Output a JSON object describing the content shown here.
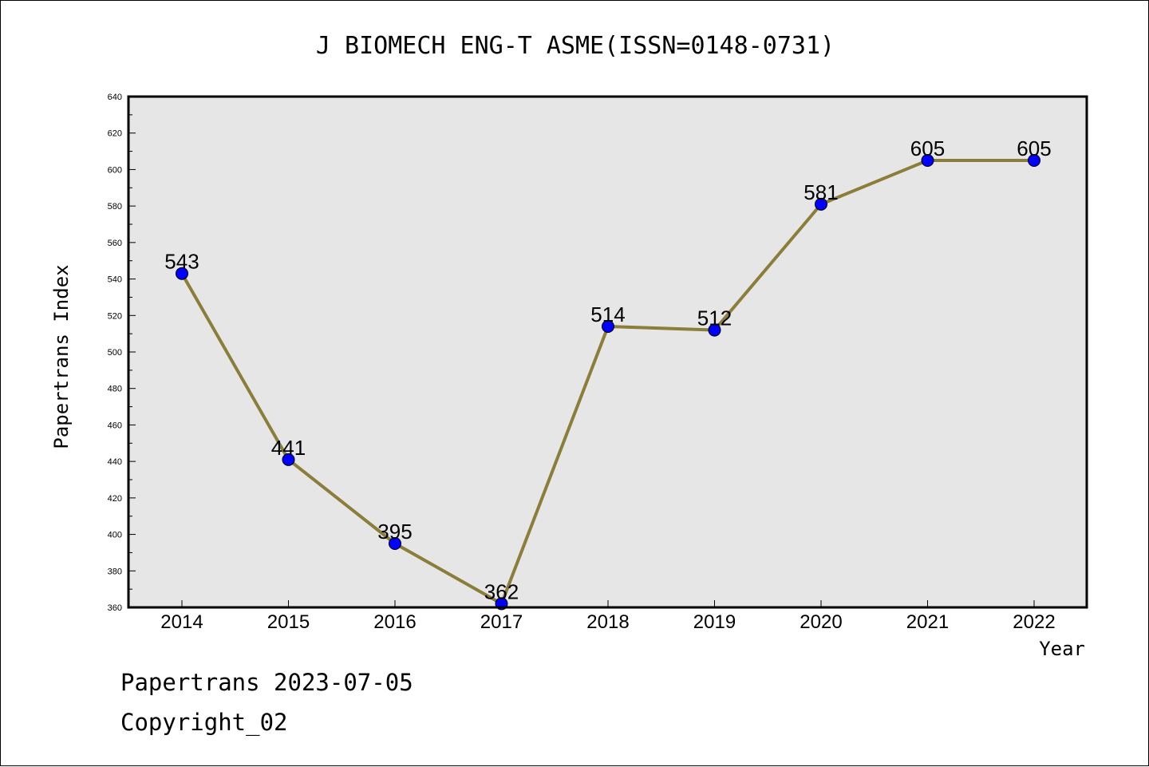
{
  "chart_data": {
    "type": "line",
    "title": "J BIOMECH ENG-T ASME(ISSN=0148-0731)",
    "xlabel": "Year",
    "ylabel": "Papertrans Index",
    "categories": [
      "2014",
      "2015",
      "2016",
      "2017",
      "2018",
      "2019",
      "2020",
      "2021",
      "2022"
    ],
    "values": [
      543,
      441,
      395,
      362,
      514,
      512,
      581,
      605,
      605
    ],
    "data_labels": [
      "543",
      "441",
      "395",
      "362",
      "514",
      "512",
      "581",
      "605",
      "605"
    ],
    "ylim": [
      360,
      640
    ],
    "y_ticks": [
      360,
      380,
      400,
      420,
      440,
      460,
      480,
      500,
      520,
      540,
      560,
      580,
      600,
      620,
      640
    ],
    "y_tick_labels": [
      "360",
      "380",
      "400",
      "420",
      "440",
      "460",
      "480",
      "500",
      "520",
      "540",
      "560",
      "580",
      "600",
      "620",
      "640"
    ],
    "grid": false,
    "legend": "none",
    "colors": {
      "line": "#8B7D3A",
      "marker": "#0000FF",
      "plot_background": "#E6E6E6"
    }
  },
  "footer": {
    "line1": "Papertrans 2023-07-05",
    "line2": "Copyright_02"
  }
}
